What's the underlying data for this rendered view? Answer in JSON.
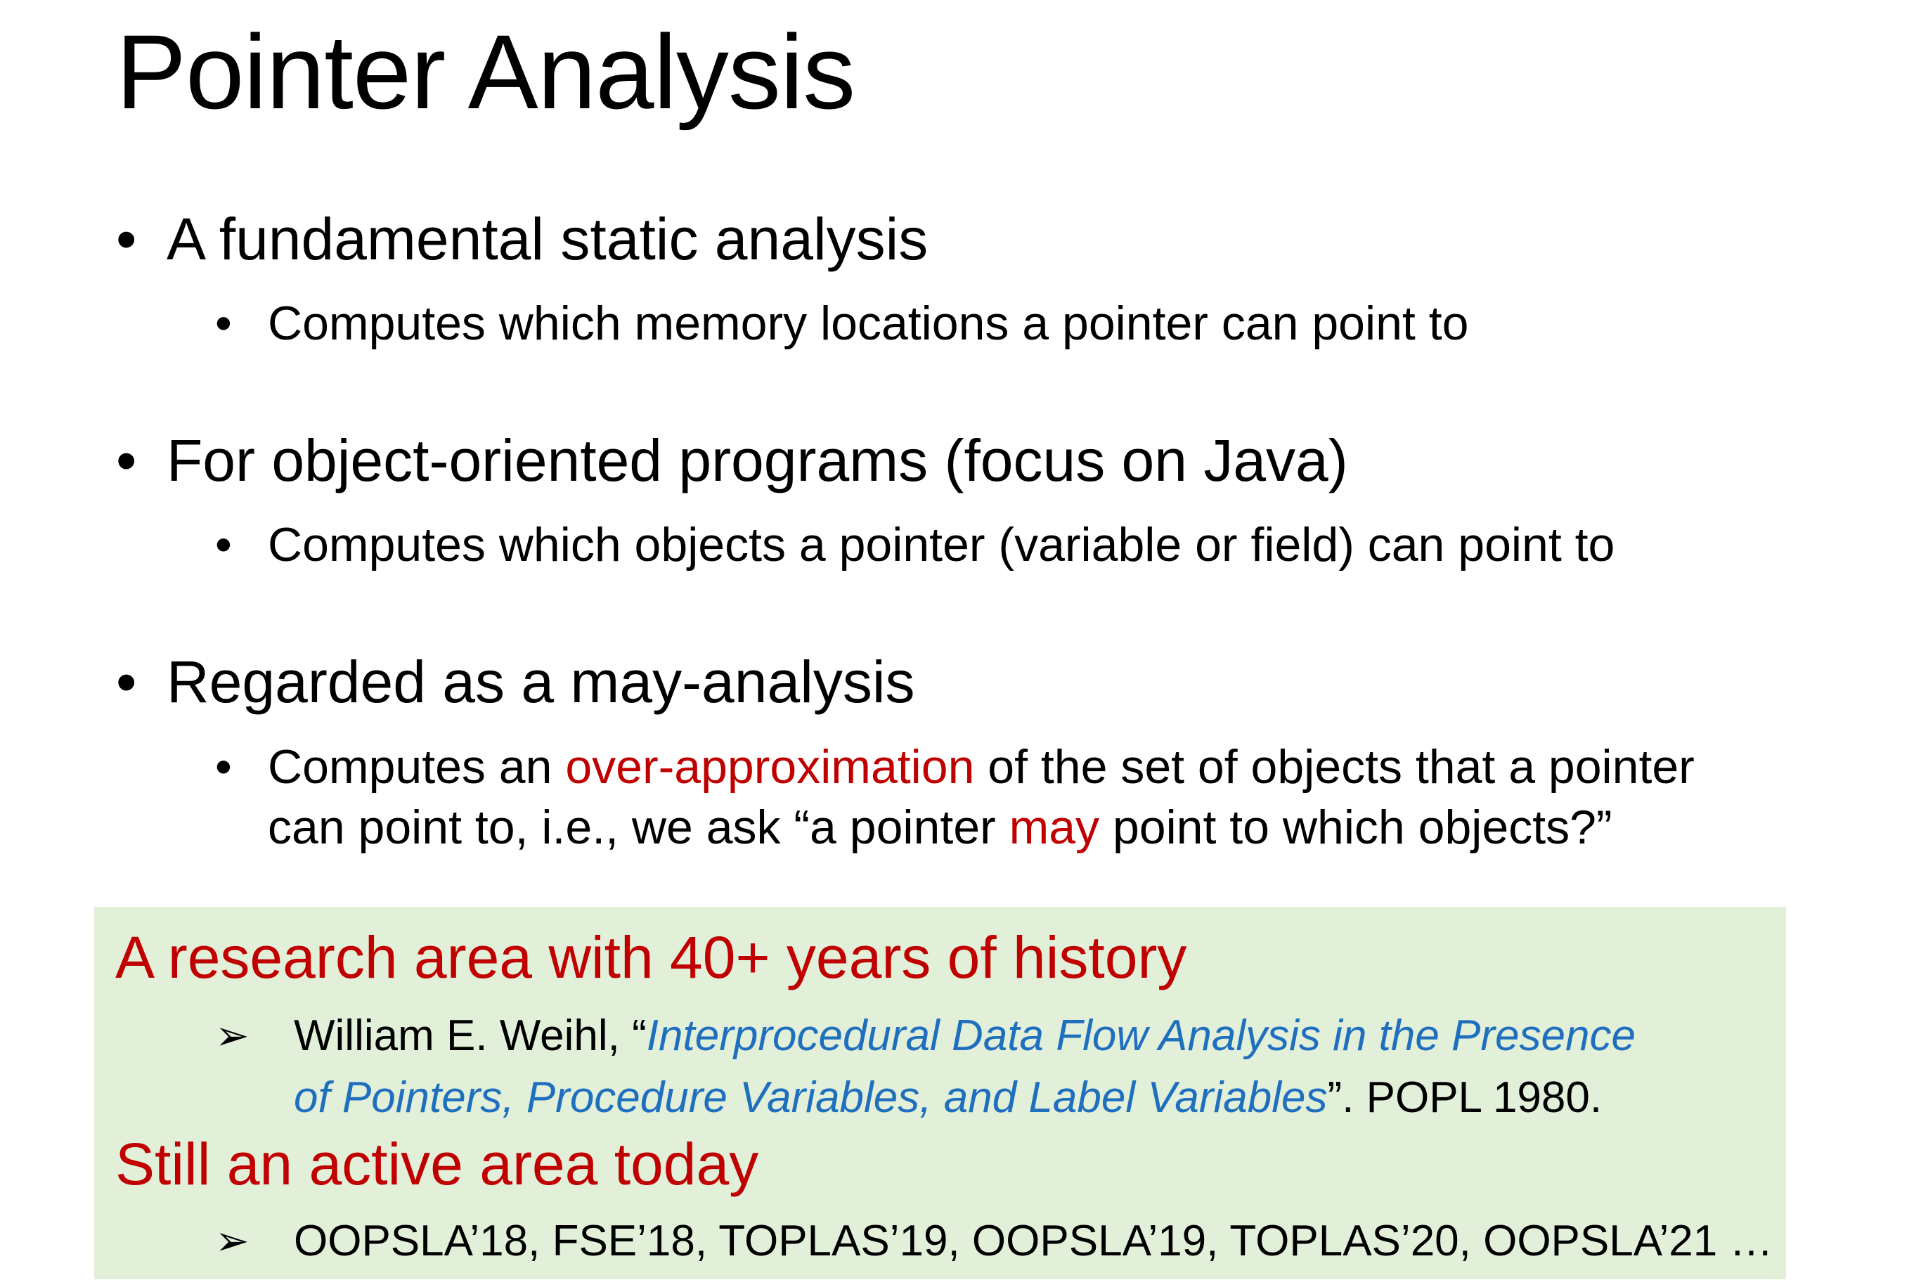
{
  "slide": {
    "title": "Pointer Analysis",
    "bullets": [
      {
        "text": "A fundamental static analysis",
        "sub": [
          {
            "text": "Computes which memory locations a pointer can point to"
          }
        ]
      },
      {
        "text": "For object-oriented programs (focus on Java)",
        "sub": [
          {
            "text": "Computes which objects a pointer (variable or field) can point to"
          }
        ]
      },
      {
        "text": "Regarded as a may-analysis",
        "sub": [
          {
            "part1": "Computes an ",
            "highlight1": "over-approximation",
            "part2": " of the set of objects that a pointer",
            "line2_part1": "can point to, i.e., we ask “a pointer ",
            "highlight2": "may",
            "line2_part2": " point to which objects?”"
          }
        ]
      }
    ],
    "bullet_glyph": "•",
    "panel": {
      "heading1": "A research area with 40+ years of history",
      "ref": {
        "author": "William E. Weihl, “",
        "title_line1": "Interprocedural Data Flow Analysis in the Presence",
        "title_line2": "of Pointers, Procedure Variables, and Label Variables",
        "suffix": "”. POPL 1980."
      },
      "heading2": "Still an active area today",
      "venues": "OOPSLA’18, FSE’18, TOPLAS’19, OOPSLA’19, TOPLAS’20, OOPSLA’21 …",
      "arrow_glyph": "➢"
    },
    "colors": {
      "highlight_red": "#c00000",
      "citation_blue": "#1f6fbf",
      "panel_bg": "#e2efd9"
    }
  }
}
